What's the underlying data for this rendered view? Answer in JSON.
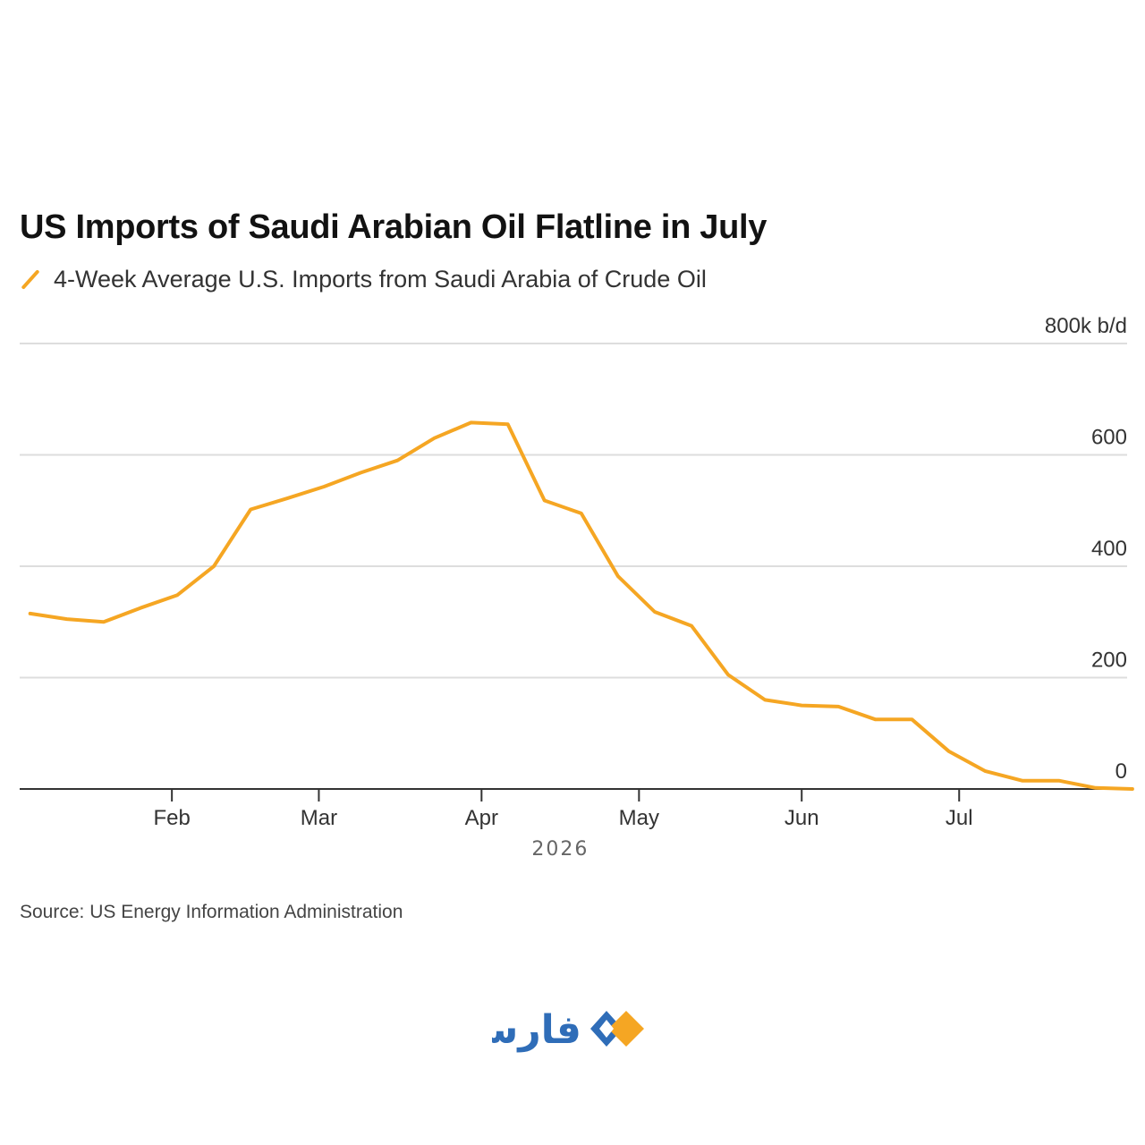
{
  "title": "US Imports of Saudi Arabian Oil Flatline in July",
  "legend": {
    "label": "4-Week Average U.S. Imports from Saudi Arabia of Crude Oil"
  },
  "source": "Source: US Energy Information Administration",
  "logo": {
    "text": "فارس",
    "icon": "fars-diamond-icon"
  },
  "colors": {
    "line": "#f5a623",
    "grid": "#dddddd",
    "axis": "#333333",
    "logo_blue": "#2f6db8",
    "logo_orange": "#f5a623"
  },
  "chart_data": {
    "type": "line",
    "title": "US Imports of Saudi Arabian Oil Flatline in July",
    "xlabel": "2026",
    "ylabel": "800k b/d",
    "ylim": [
      0,
      800
    ],
    "xlim": [
      "2026-01-03",
      "2026-08-02"
    ],
    "grid": true,
    "y_axis_side": "right",
    "legend_position": "top-left",
    "y_ticks": [
      {
        "value": 800,
        "label": "800k b/d"
      },
      {
        "value": 600,
        "label": "600"
      },
      {
        "value": 400,
        "label": "400"
      },
      {
        "value": 200,
        "label": "200"
      },
      {
        "value": 0,
        "label": "0"
      }
    ],
    "x_ticks": [
      {
        "date": "2026-02-01",
        "label": "Feb"
      },
      {
        "date": "2026-03-01",
        "label": "Mar"
      },
      {
        "date": "2026-04-01",
        "label": "Apr"
      },
      {
        "date": "2026-05-01",
        "label": "May"
      },
      {
        "date": "2026-06-01",
        "label": "Jun"
      },
      {
        "date": "2026-07-01",
        "label": "Jul"
      }
    ],
    "year_label": "2026",
    "series": [
      {
        "name": "4-Week Average U.S. Imports from Saudi Arabia of Crude Oil",
        "color": "#f5a623",
        "points": [
          [
            "2026-01-05",
            315
          ],
          [
            "2026-01-12",
            305
          ],
          [
            "2026-01-19",
            300
          ],
          [
            "2026-01-26",
            325
          ],
          [
            "2026-02-02",
            348
          ],
          [
            "2026-02-09",
            400
          ],
          [
            "2026-02-16",
            502
          ],
          [
            "2026-02-23",
            522
          ],
          [
            "2026-03-02",
            543
          ],
          [
            "2026-03-09",
            568
          ],
          [
            "2026-03-16",
            590
          ],
          [
            "2026-03-23",
            630
          ],
          [
            "2026-03-30",
            658
          ],
          [
            "2026-04-06",
            655
          ],
          [
            "2026-04-13",
            518
          ],
          [
            "2026-04-20",
            495
          ],
          [
            "2026-04-27",
            382
          ],
          [
            "2026-05-04",
            318
          ],
          [
            "2026-05-11",
            293
          ],
          [
            "2026-05-18",
            205
          ],
          [
            "2026-05-25",
            160
          ],
          [
            "2026-06-01",
            150
          ],
          [
            "2026-06-08",
            148
          ],
          [
            "2026-06-15",
            125
          ],
          [
            "2026-06-22",
            125
          ],
          [
            "2026-06-29",
            68
          ],
          [
            "2026-07-06",
            32
          ],
          [
            "2026-07-13",
            15
          ],
          [
            "2026-07-20",
            15
          ],
          [
            "2026-07-27",
            2
          ],
          [
            "2026-08-03",
            0
          ]
        ]
      }
    ]
  }
}
